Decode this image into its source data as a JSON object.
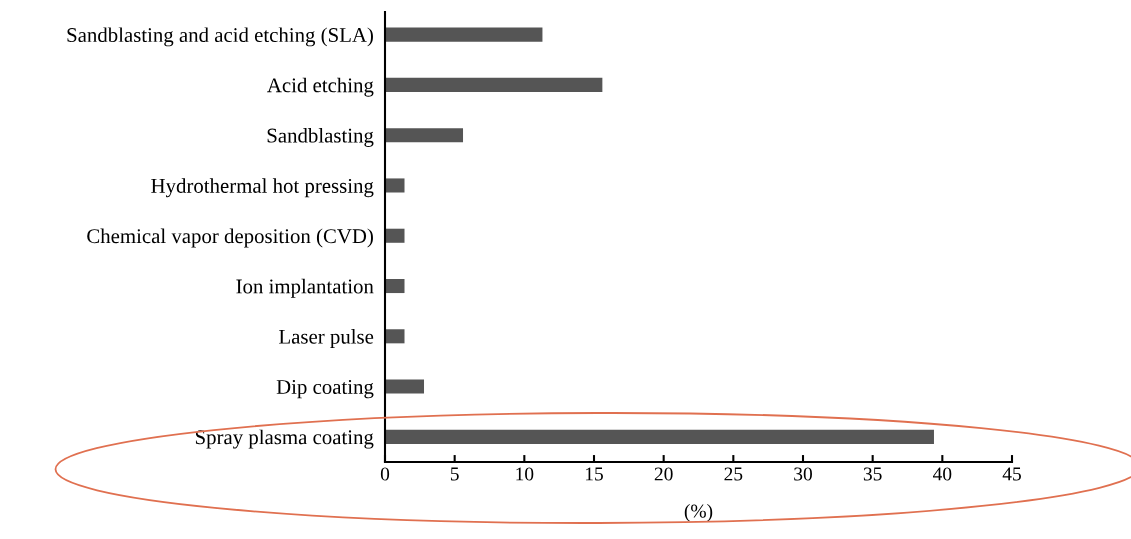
{
  "chart_data": {
    "type": "bar",
    "orientation": "horizontal",
    "xlabel": "(%)",
    "categories": [
      "Sandblasting and acid etching (SLA)",
      "Acid etching",
      "Sandblasting",
      "Hydrothermal hot pressing",
      "Chemical vapor deposition (CVD)",
      "Ion implantation",
      "Laser pulse",
      "Dip coating",
      "Spray plasma coating"
    ],
    "values": [
      11.3,
      15.6,
      5.6,
      1.4,
      1.4,
      1.4,
      1.4,
      2.8,
      39.4
    ],
    "color": "#555555",
    "xlim": [
      0,
      45
    ],
    "xticks": [
      0,
      5,
      10,
      15,
      20,
      25,
      30,
      35,
      40,
      45
    ],
    "grid": false
  }
}
